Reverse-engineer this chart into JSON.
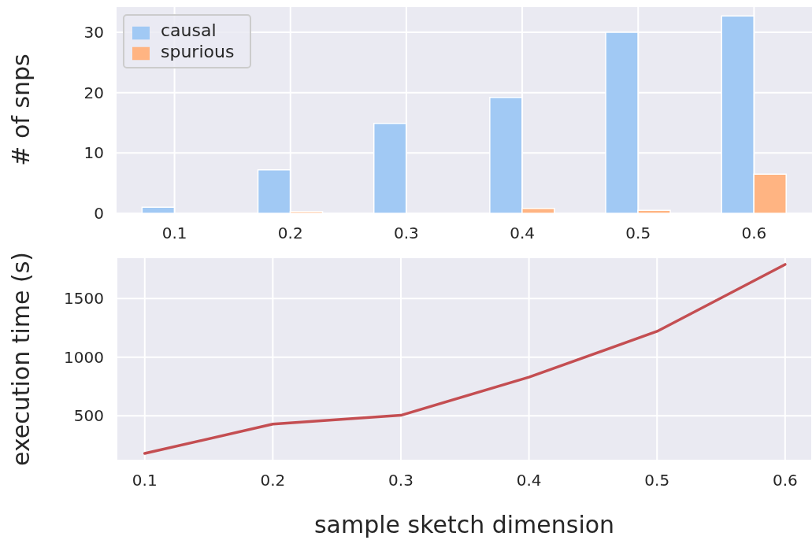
{
  "chart_data": [
    {
      "type": "bar",
      "ylabel": "# of snps",
      "categories": [
        "0.1",
        "0.2",
        "0.3",
        "0.4",
        "0.5",
        "0.6"
      ],
      "series": [
        {
          "name": "causal",
          "color": "#a1c9f4",
          "values": [
            1,
            7.2,
            14.9,
            19.2,
            30,
            32.7
          ]
        },
        {
          "name": "spurious",
          "color": "#ffb482",
          "values": [
            0,
            0.3,
            0,
            0.8,
            0.5,
            6.5
          ]
        }
      ],
      "ylim": [
        0,
        34.3
      ],
      "yticks": [
        0,
        10,
        20,
        30
      ],
      "grid": true,
      "legend": "top left"
    },
    {
      "type": "line",
      "xlabel": "sample sketch dimension",
      "ylabel": "execution time (s)",
      "x": [
        0.1,
        0.2,
        0.3,
        0.4,
        0.5,
        0.6
      ],
      "series": [
        {
          "color": "#c44e52",
          "values": [
            180,
            430,
            505,
            830,
            1220,
            1790
          ]
        }
      ],
      "xlim": [
        0.078,
        0.621
      ],
      "xticks": [
        0.1,
        0.2,
        0.3,
        0.4,
        0.5,
        0.6
      ],
      "ylim": [
        120,
        1850
      ],
      "yticks": [
        500,
        1000,
        1500
      ],
      "grid": true,
      "marker": "none"
    }
  ]
}
